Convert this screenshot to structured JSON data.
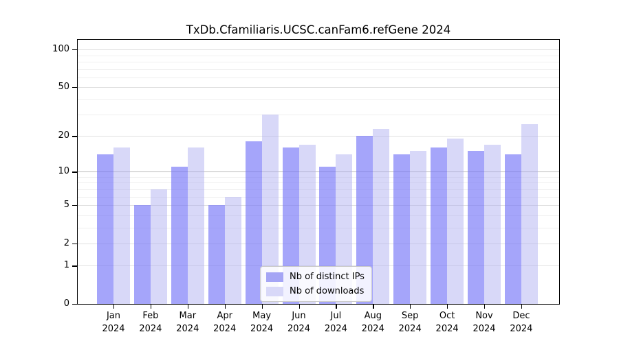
{
  "title": "TxDb.Cfamiliaris.UCSC.canFam6.refGene 2024",
  "chart_data": {
    "type": "bar",
    "title": "TxDb.Cfamiliaris.UCSC.canFam6.refGene 2024",
    "categories": [
      "Jan",
      "Feb",
      "Mar",
      "Apr",
      "May",
      "Jun",
      "Jul",
      "Aug",
      "Sep",
      "Oct",
      "Nov",
      "Dec"
    ],
    "year_label": "2024",
    "series": [
      {
        "name": "Nb of distinct IPs",
        "color": "#a5a5f5",
        "fill": "rgba(113,113,247,0.63)",
        "values": [
          14,
          5,
          11,
          5,
          18,
          16,
          11,
          20,
          14,
          16,
          15,
          14
        ]
      },
      {
        "name": "Nb of downloads",
        "color": "#d8d8f8",
        "fill": "rgba(168,168,240,0.45)",
        "values": [
          16,
          7,
          16,
          6,
          30,
          17,
          14,
          23,
          15,
          19,
          17,
          25
        ]
      }
    ],
    "y_axis": {
      "scale": "log10(x+1)",
      "ticks": [
        0,
        1,
        2,
        5,
        10,
        20,
        50,
        100
      ],
      "minor_gridlines": [
        3,
        4,
        6,
        7,
        8,
        9,
        30,
        40,
        60,
        70,
        80,
        90
      ],
      "ylim": [
        0,
        119
      ]
    },
    "x_axis": {
      "label": ""
    },
    "grid": true,
    "legend": {
      "position": "lower-center",
      "entries": [
        "Nb of distinct IPs",
        "Nb of downloads"
      ]
    }
  }
}
